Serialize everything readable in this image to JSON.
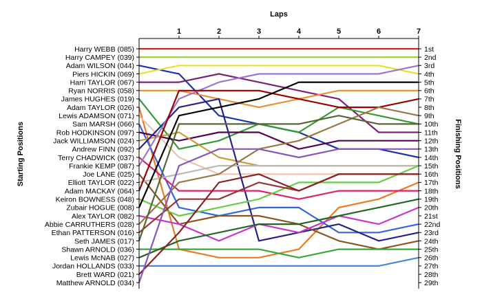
{
  "chart_data": {
    "type": "line",
    "title": "",
    "x_axis_title": "Laps",
    "left_axis_title": "Starting Positions",
    "right_axis_title": "Finishing Positions",
    "laps": [
      0,
      1,
      2,
      3,
      4,
      5,
      6,
      7
    ],
    "lap_labels": [
      "1",
      "2",
      "3",
      "4",
      "5",
      "6",
      "7"
    ],
    "starting_order": [
      "Harry WEBB (085)",
      "Harry CAMPEY (039)",
      "Adam WILSON (044)",
      "Piers HICKIN (069)",
      "Harri TAYLOR (067)",
      "Ryan NORRIS (058)",
      "James HUGHES (019)",
      "Adam TAYLOR (026)",
      "Lewis ADAMSON (071)",
      "Sam MARSH (066)",
      "Rob HODKINSON (097)",
      "Jack WILLIAMSON (024)",
      "Andrew FINN (092)",
      "Terry CHADWICK (037)",
      "Frankie KEMP (087)",
      "Joe LANE (025)",
      "Elliott TAYLOR (022)",
      "Adam MACKAY (064)",
      "Keiron BOWNESS (048)",
      "Zubair HOGUE (008)",
      "Alex TAYLOR (082)",
      "Abbie CARRUTHERS (028)",
      "Ethan PATTERSON (016)",
      "Seth JAMES (017)",
      "Shawn ARNOLD (036)",
      "Lewis McNAB (027)",
      "Jordan HOLLANDS (033)",
      "Brett WARD (021)",
      "Matthew ARNOLD (034)"
    ],
    "finishing_labels": [
      "1st",
      "2nd",
      "3rd",
      "4th",
      "5th",
      "6th",
      "7th",
      "8th",
      "9th",
      "10th",
      "11th",
      "12th",
      "13th",
      "14th",
      "15th",
      "16th",
      "17th",
      "18th",
      "19th",
      "20th",
      "21st",
      "22nd",
      "23rd",
      "24th",
      "25th",
      "26th",
      "27th",
      "28th",
      "29th"
    ],
    "y_range": [
      1,
      29
    ],
    "grid": false,
    "series": [
      {
        "color": "#cc2222",
        "positions": [
          1,
          1,
          1,
          1,
          1,
          1,
          1,
          1
        ]
      },
      {
        "color": "#99cc33",
        "positions": [
          2,
          2,
          2,
          2,
          2,
          2,
          2,
          2
        ]
      },
      {
        "color": "#1a33aa",
        "positions": [
          3,
          4,
          9,
          10,
          11,
          13,
          13,
          14
        ]
      },
      {
        "color": "#e8e030",
        "positions": [
          4,
          3,
          3,
          3,
          3,
          3,
          3,
          4
        ]
      },
      {
        "color": "#7a2277",
        "positions": [
          5,
          5,
          4,
          5,
          6,
          7,
          11,
          11
        ]
      },
      {
        "color": "#e89030",
        "positions": [
          6,
          6,
          7,
          8,
          7,
          6,
          6,
          6
        ]
      },
      {
        "color": "#339933",
        "positions": [
          7,
          13,
          12,
          10,
          11,
          8,
          9,
          10
        ]
      },
      {
        "color": "#ee7722",
        "positions": [
          8,
          25,
          26,
          26,
          25,
          20,
          19,
          17
        ]
      },
      {
        "color": "#f0c0b0",
        "positions": [
          9,
          14,
          16,
          16,
          16,
          16,
          16,
          16
        ]
      },
      {
        "color": "#3366dd",
        "positions": [
          10,
          20,
          21,
          20,
          20,
          23,
          23,
          22
        ]
      },
      {
        "color": "#550055",
        "positions": [
          11,
          12,
          11,
          11,
          13,
          12,
          12,
          12
        ]
      },
      {
        "color": "#cc9933",
        "positions": [
          12,
          11,
          14,
          15,
          15,
          15,
          15,
          15
        ]
      },
      {
        "color": "#222288",
        "positions": [
          13,
          8,
          7,
          24,
          23,
          22,
          24,
          23
        ]
      },
      {
        "color": "#dd2266",
        "positions": [
          14,
          18,
          18,
          18,
          19,
          18,
          18,
          18
        ]
      },
      {
        "color": "#9977cc",
        "positions": [
          15,
          7,
          5,
          4,
          4,
          4,
          4,
          3
        ]
      },
      {
        "color": "#885522",
        "positions": [
          16,
          22,
          21,
          21,
          22,
          24,
          25,
          24
        ]
      },
      {
        "color": "#b8b8b8",
        "positions": [
          17,
          16,
          15,
          15,
          15,
          15,
          15,
          15
        ]
      },
      {
        "color": "#990000",
        "positions": [
          18,
          6,
          6,
          6,
          7,
          8,
          8,
          7
        ]
      },
      {
        "color": "#66cc44",
        "positions": [
          19,
          21,
          20,
          19,
          17,
          17,
          17,
          15
        ]
      },
      {
        "color": "#000000",
        "positions": [
          20,
          9,
          8,
          7,
          5,
          5,
          5,
          5
        ]
      },
      {
        "color": "#cc33cc",
        "positions": [
          21,
          22,
          24,
          22,
          23,
          21,
          22,
          20
        ]
      },
      {
        "color": "#997744",
        "positions": [
          22,
          17,
          16,
          13,
          12,
          10,
          8,
          9
        ]
      },
      {
        "color": "#993333",
        "positions": [
          23,
          19,
          19,
          17,
          18,
          16,
          16,
          16
        ]
      },
      {
        "color": "#556633",
        "positions": [
          24,
          10,
          10,
          10,
          10,
          9,
          10,
          10
        ]
      },
      {
        "color": "#33aa33",
        "positions": [
          25,
          25,
          25,
          25,
          26,
          25,
          25,
          25
        ]
      },
      {
        "color": "#226622",
        "positions": [
          26,
          24,
          23,
          22,
          22,
          21,
          20,
          19
        ]
      },
      {
        "color": "#4488dd",
        "positions": [
          27,
          27,
          27,
          27,
          27,
          27,
          27,
          26
        ]
      },
      {
        "color": "#882222",
        "positions": [
          28,
          23,
          17,
          16,
          18,
          16,
          16,
          16
        ]
      },
      {
        "color": "#8855bb",
        "positions": [
          29,
          15,
          13,
          13,
          14,
          13,
          13,
          13
        ]
      }
    ]
  }
}
